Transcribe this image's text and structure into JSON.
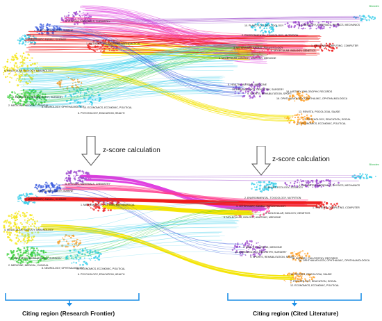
{
  "top_panel": {
    "corner_mark": "Blondex",
    "left_labels": [
      "5. PHYSICS, MATERIALS, CHEMISTRY",
      "3. ECOLOGY, EARTH, MARINE",
      "7. VETERINARY, ANIMAL, SCIENCE",
      "1. MATHEMATICS, SYSTEMS, MATHEMATICAL",
      "4. MOLECULAR, BIOLOGY, IMMUNOLOGY",
      "9. DENTISTRY, DERMATOLOGY, SURGERY",
      "2. MEDICINE, MEDICAL, CLINICAL",
      "6. PSYCHOLOGY, EDUCATION, HEALTH",
      "10. ECONOMICS, ECONOMIC, POLITICAL",
      "8. NEUROLOGY, OPHTHALMOLOGY"
    ],
    "right_labels": [
      "4. CHEMISTRY, MATERIALS, PHYSICS, MECHANICS",
      "10. PLANT, ECOLOGY, ZOOLOGY",
      "2. ENVIRONMENTAL, TOXICOLOGY, NUTRITION",
      "1. SYSTEMS, COMPUTING, COMPUTER",
      "3. VETERINARY, ANIMAL, PARASITOLOGY",
      "6. MOLECULAR, BIOLOGY, GENETICS",
      "8. MOLECULAR, BIOLOGY, ANATOMY, MEDICINE",
      "5. HEALTH, NURSING, MEDICINE",
      "14. DERMATOLOGY, DENTISTRY, SURGERY",
      "9. SPORTS, REHABILITATION, SPORT",
      "16. OPHTHALMOLOGY, OPHTHALMIC, OPHTHALMOLOGICA",
      "18. HISTORY, PHILOSOPHY, RECORDS",
      "13. REVISTA, PSICOLOGIA, SAUDE",
      "7. PSYCHOLOGY, EDUCATION, SOCIAL",
      "12. ECONOMICS, ECONOMIC, POLITICAL"
    ]
  },
  "middle": {
    "z_label": "z-score calculation"
  },
  "bottom_panel": {
    "corner_mark": "Blondex",
    "left_labels": [
      "5. PHYSICS, MATERIALS, CHEMISTRY",
      "3. ECOLOGY, EARTH, MARINE",
      "7. VETERINARY, ANIMAL, SCIENCE",
      "1. MATHEMATICS, SYSTEMS, MATHEMATICAL",
      "4. MOLECULAR, BIOLOGY, IMMUNOLOGY",
      "9. DENTISTRY, DERMATOLOGY, SURGERY",
      "2. MEDICINE, MEDICAL, CLINICAL",
      "6. PSYCHOLOGY, EDUCATION, HEALTH",
      "10. ECONOMICS, ECONOMIC, POLITICAL",
      "8. NEUROLOGY, OPHTHALMOLOGY"
    ],
    "right_labels": [
      "4. CHEMISTRY, MATERIALS, PHYSICS, MECHANICS",
      "10. PLANT, ECOLOGY, ZOOLOGY",
      "2. ENVIRONMENTAL, TOXICOLOGY, NUTRITION",
      "1. SYSTEMS, COMPUTING, COMPUTER",
      "3. VETERINARY, ANIMAL, PARASITOLOGY",
      "6. MOLECULAR, BIOLOGY, GENETICS",
      "8. MOLECULAR, BIOLOGY, ANATOMY, MEDICINE",
      "5. HEALTH, NURSING, MEDICINE",
      "14. DERMATOLOGY, DENTISTRY, SURGERY",
      "9. SPORTS, REHABILITATION, SPORT",
      "16. OPHTHALMOLOGY, OPHTHALMIC, OPHTHALMOLOGICA",
      "18. HISTORY, PHILOSOPHY, RECORDS",
      "13. REVISTA, PSICOLOGIA, SAUDE",
      "7. PSYCHOLOGY, EDUCATION, SOCIAL",
      "12. ECONOMICS, ECONOMIC, POLITICAL"
    ]
  },
  "regions": {
    "left": "Citing region (Research Frontier)",
    "right": "Citing region (Cited Literature)"
  },
  "colors": {
    "magenta": "#e040e0",
    "pink": "#ff3c8c",
    "red": "#ee1c1c",
    "yellow": "#f4e400",
    "cyan": "#2ecbe8",
    "blue": "#3355dd",
    "green": "#33cc33",
    "orange": "#ff9a1a",
    "purple": "#9944cc",
    "bracket": "#1e8fe6"
  }
}
